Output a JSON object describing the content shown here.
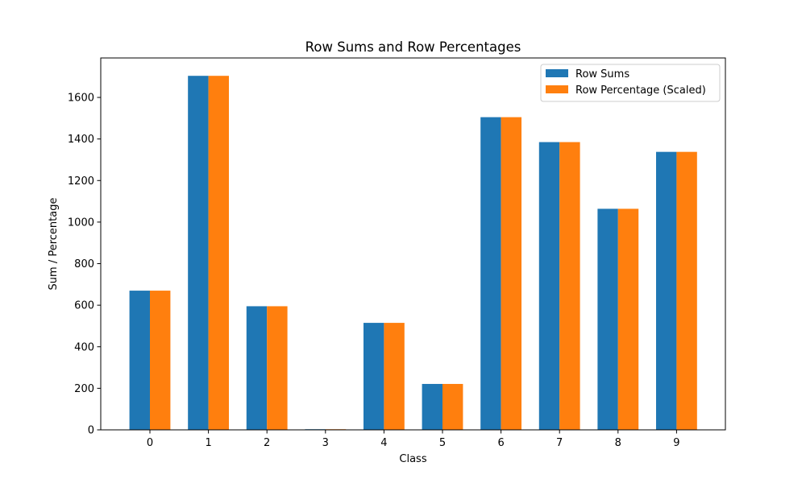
{
  "chart_data": {
    "type": "bar",
    "title": "Row Sums and Row Percentages",
    "xlabel": "Class",
    "ylabel": "Sum / Percentage",
    "categories": [
      "0",
      "1",
      "2",
      "3",
      "4",
      "5",
      "6",
      "7",
      "8",
      "9"
    ],
    "series": [
      {
        "name": "Row Sums",
        "color": "#1f77b4",
        "values": [
          670,
          1704,
          595,
          3,
          515,
          221,
          1505,
          1385,
          1064,
          1338
        ]
      },
      {
        "name": "Row Percentage (Scaled)",
        "color": "#ff7f0e",
        "values": [
          670,
          1704,
          595,
          3,
          515,
          221,
          1505,
          1385,
          1064,
          1338
        ]
      }
    ],
    "ylim": [
      0,
      1790
    ],
    "yticks": [
      "0",
      "200",
      "400",
      "600",
      "800",
      "1000",
      "1200",
      "1400",
      "1600"
    ],
    "legend": "top-right",
    "grid": false
  }
}
